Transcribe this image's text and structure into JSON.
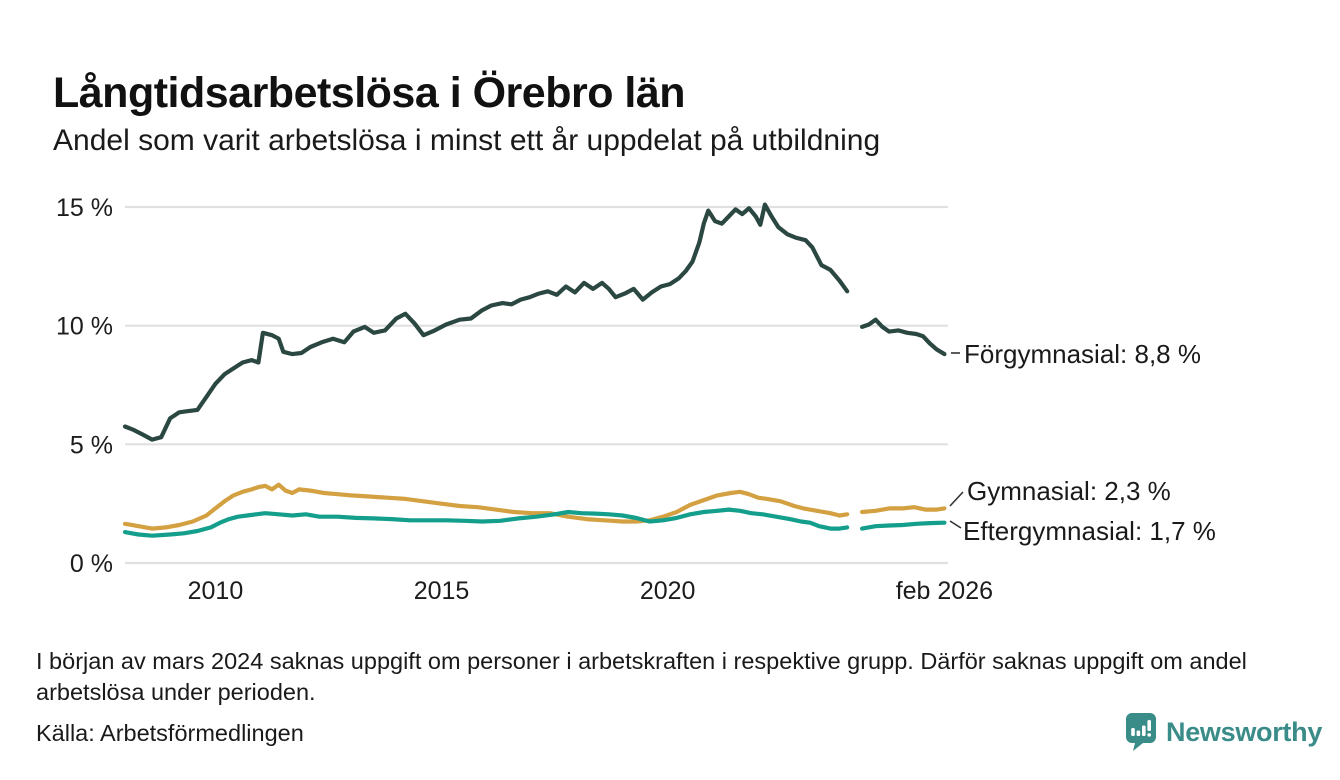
{
  "header": {
    "title": "Långtidsarbetslösa i Örebro län",
    "subtitle": "Andel som varit arbetslösa i minst ett år uppdelat på utbildning"
  },
  "chart_data": {
    "type": "line",
    "title": "Långtidsarbetslösa i Örebro län",
    "subtitle": "Andel som varit arbetslösa i minst ett år uppdelat på utbildning",
    "unit": "%",
    "grid": "horizontal",
    "legend": "direct-labels-right",
    "colors": {
      "forgymnasial": "#2b4742",
      "gymnasial": "#d4a142",
      "eftergymnasial": "#149e8c",
      "gridline": "#e0e0e0",
      "axis_text": "#1c1c1c",
      "connector": "#333333"
    },
    "x_axis": {
      "range": [
        2008.0,
        2026.2
      ],
      "ticks": [
        {
          "label": "2010",
          "t": 2010
        },
        {
          "label": "2015",
          "t": 2015
        },
        {
          "label": "2020",
          "t": 2020
        },
        {
          "label": "feb 2026",
          "t": 2026.12
        }
      ]
    },
    "y_axis": {
      "range": [
        0,
        15
      ],
      "ticks": [
        {
          "label": "0 %",
          "v": 0
        },
        {
          "label": "5 %",
          "v": 5
        },
        {
          "label": "10 %",
          "v": 10
        },
        {
          "label": "15 %",
          "v": 15
        }
      ]
    },
    "series": [
      {
        "name": "Förgymnasial",
        "label": "Förgymnasial: 8,8 %",
        "last_value": 8.8,
        "color": "#2b4742",
        "segments": [
          [
            [
              2008.0,
              5.75
            ],
            [
              2008.2,
              5.6
            ],
            [
              2008.4,
              5.4
            ],
            [
              2008.6,
              5.2
            ],
            [
              2008.8,
              5.3
            ],
            [
              2009.0,
              6.1
            ],
            [
              2009.2,
              6.35
            ],
            [
              2009.4,
              6.4
            ],
            [
              2009.6,
              6.45
            ],
            [
              2009.8,
              7.0
            ],
            [
              2010.0,
              7.55
            ],
            [
              2010.2,
              7.95
            ],
            [
              2010.4,
              8.2
            ],
            [
              2010.6,
              8.45
            ],
            [
              2010.8,
              8.55
            ],
            [
              2010.95,
              8.45
            ],
            [
              2011.05,
              9.7
            ],
            [
              2011.25,
              9.6
            ],
            [
              2011.4,
              9.45
            ],
            [
              2011.5,
              8.9
            ],
            [
              2011.7,
              8.8
            ],
            [
              2011.9,
              8.85
            ],
            [
              2012.1,
              9.1
            ],
            [
              2012.35,
              9.3
            ],
            [
              2012.6,
              9.45
            ],
            [
              2012.85,
              9.3
            ],
            [
              2013.05,
              9.75
            ],
            [
              2013.3,
              9.95
            ],
            [
              2013.5,
              9.7
            ],
            [
              2013.75,
              9.8
            ],
            [
              2014.0,
              10.3
            ],
            [
              2014.2,
              10.5
            ],
            [
              2014.4,
              10.1
            ],
            [
              2014.6,
              9.6
            ],
            [
              2014.85,
              9.8
            ],
            [
              2015.1,
              10.05
            ],
            [
              2015.4,
              10.25
            ],
            [
              2015.65,
              10.3
            ],
            [
              2015.9,
              10.65
            ],
            [
              2016.1,
              10.85
            ],
            [
              2016.35,
              10.95
            ],
            [
              2016.55,
              10.9
            ],
            [
              2016.75,
              11.1
            ],
            [
              2016.95,
              11.2
            ],
            [
              2017.15,
              11.35
            ],
            [
              2017.35,
              11.45
            ],
            [
              2017.55,
              11.3
            ],
            [
              2017.75,
              11.65
            ],
            [
              2017.95,
              11.4
            ],
            [
              2018.15,
              11.8
            ],
            [
              2018.35,
              11.55
            ],
            [
              2018.55,
              11.8
            ],
            [
              2018.7,
              11.55
            ],
            [
              2018.85,
              11.2
            ],
            [
              2019.05,
              11.35
            ],
            [
              2019.25,
              11.55
            ],
            [
              2019.45,
              11.1
            ],
            [
              2019.65,
              11.4
            ],
            [
              2019.85,
              11.65
            ],
            [
              2020.05,
              11.75
            ],
            [
              2020.25,
              12.0
            ],
            [
              2020.4,
              12.3
            ],
            [
              2020.55,
              12.7
            ],
            [
              2020.7,
              13.5
            ],
            [
              2020.8,
              14.3
            ],
            [
              2020.9,
              14.85
            ],
            [
              2021.05,
              14.4
            ],
            [
              2021.2,
              14.3
            ],
            [
              2021.35,
              14.6
            ],
            [
              2021.5,
              14.9
            ],
            [
              2021.65,
              14.7
            ],
            [
              2021.8,
              14.95
            ],
            [
              2021.95,
              14.6
            ],
            [
              2022.05,
              14.25
            ],
            [
              2022.15,
              15.1
            ],
            [
              2022.3,
              14.6
            ],
            [
              2022.45,
              14.15
            ],
            [
              2022.65,
              13.85
            ],
            [
              2022.85,
              13.7
            ],
            [
              2023.05,
              13.6
            ],
            [
              2023.2,
              13.3
            ],
            [
              2023.4,
              12.55
            ],
            [
              2023.6,
              12.35
            ],
            [
              2023.8,
              11.9
            ],
            [
              2023.97,
              11.45
            ]
          ],
          [
            [
              2024.3,
              9.95
            ],
            [
              2024.45,
              10.05
            ],
            [
              2024.6,
              10.25
            ],
            [
              2024.75,
              9.95
            ],
            [
              2024.9,
              9.75
            ],
            [
              2025.1,
              9.8
            ],
            [
              2025.3,
              9.7
            ],
            [
              2025.5,
              9.65
            ],
            [
              2025.65,
              9.55
            ],
            [
              2025.8,
              9.25
            ],
            [
              2025.95,
              9.0
            ],
            [
              2026.12,
              8.8
            ]
          ]
        ]
      },
      {
        "name": "Gymnasial",
        "label": "Gymnasial: 2,3 %",
        "last_value": 2.3,
        "color": "#d4a142",
        "segments": [
          [
            [
              2008.0,
              1.65
            ],
            [
              2008.3,
              1.55
            ],
            [
              2008.6,
              1.45
            ],
            [
              2008.9,
              1.5
            ],
            [
              2009.2,
              1.6
            ],
            [
              2009.5,
              1.75
            ],
            [
              2009.8,
              2.0
            ],
            [
              2010.0,
              2.3
            ],
            [
              2010.2,
              2.6
            ],
            [
              2010.4,
              2.85
            ],
            [
              2010.6,
              3.0
            ],
            [
              2010.8,
              3.1
            ],
            [
              2010.95,
              3.2
            ],
            [
              2011.1,
              3.25
            ],
            [
              2011.25,
              3.1
            ],
            [
              2011.4,
              3.3
            ],
            [
              2011.55,
              3.05
            ],
            [
              2011.7,
              2.95
            ],
            [
              2011.85,
              3.1
            ],
            [
              2012.1,
              3.05
            ],
            [
              2012.4,
              2.95
            ],
            [
              2012.7,
              2.9
            ],
            [
              2013.0,
              2.85
            ],
            [
              2013.4,
              2.8
            ],
            [
              2013.8,
              2.75
            ],
            [
              2014.2,
              2.7
            ],
            [
              2014.6,
              2.6
            ],
            [
              2015.0,
              2.5
            ],
            [
              2015.4,
              2.4
            ],
            [
              2015.8,
              2.35
            ],
            [
              2016.2,
              2.25
            ],
            [
              2016.6,
              2.15
            ],
            [
              2017.0,
              2.1
            ],
            [
              2017.4,
              2.1
            ],
            [
              2017.8,
              1.95
            ],
            [
              2018.2,
              1.85
            ],
            [
              2018.6,
              1.8
            ],
            [
              2019.0,
              1.75
            ],
            [
              2019.3,
              1.75
            ],
            [
              2019.6,
              1.8
            ],
            [
              2019.9,
              1.95
            ],
            [
              2020.2,
              2.15
            ],
            [
              2020.5,
              2.45
            ],
            [
              2020.8,
              2.65
            ],
            [
              2021.1,
              2.85
            ],
            [
              2021.4,
              2.95
            ],
            [
              2021.6,
              3.0
            ],
            [
              2021.8,
              2.9
            ],
            [
              2022.0,
              2.75
            ],
            [
              2022.2,
              2.7
            ],
            [
              2022.5,
              2.6
            ],
            [
              2022.8,
              2.4
            ],
            [
              2023.0,
              2.3
            ],
            [
              2023.3,
              2.2
            ],
            [
              2023.6,
              2.1
            ],
            [
              2023.8,
              2.0
            ],
            [
              2023.97,
              2.05
            ]
          ],
          [
            [
              2024.3,
              2.15
            ],
            [
              2024.6,
              2.2
            ],
            [
              2024.9,
              2.3
            ],
            [
              2025.2,
              2.3
            ],
            [
              2025.45,
              2.35
            ],
            [
              2025.7,
              2.25
            ],
            [
              2025.95,
              2.25
            ],
            [
              2026.12,
              2.3
            ]
          ]
        ]
      },
      {
        "name": "Eftergymnasial",
        "label": "Eftergymnasial: 1,7 %",
        "last_value": 1.7,
        "color": "#149e8c",
        "segments": [
          [
            [
              2008.0,
              1.3
            ],
            [
              2008.3,
              1.2
            ],
            [
              2008.6,
              1.15
            ],
            [
              2009.0,
              1.2
            ],
            [
              2009.3,
              1.25
            ],
            [
              2009.6,
              1.35
            ],
            [
              2009.9,
              1.5
            ],
            [
              2010.1,
              1.7
            ],
            [
              2010.3,
              1.85
            ],
            [
              2010.5,
              1.95
            ],
            [
              2010.7,
              2.0
            ],
            [
              2010.9,
              2.05
            ],
            [
              2011.1,
              2.1
            ],
            [
              2011.4,
              2.05
            ],
            [
              2011.7,
              2.0
            ],
            [
              2012.0,
              2.05
            ],
            [
              2012.3,
              1.95
            ],
            [
              2012.7,
              1.95
            ],
            [
              2013.1,
              1.9
            ],
            [
              2013.5,
              1.88
            ],
            [
              2013.9,
              1.85
            ],
            [
              2014.3,
              1.8
            ],
            [
              2014.7,
              1.8
            ],
            [
              2015.1,
              1.8
            ],
            [
              2015.5,
              1.78
            ],
            [
              2015.9,
              1.75
            ],
            [
              2016.3,
              1.78
            ],
            [
              2016.7,
              1.88
            ],
            [
              2017.1,
              1.95
            ],
            [
              2017.5,
              2.05
            ],
            [
              2017.8,
              2.15
            ],
            [
              2018.1,
              2.1
            ],
            [
              2018.4,
              2.08
            ],
            [
              2018.7,
              2.05
            ],
            [
              2019.0,
              2.0
            ],
            [
              2019.3,
              1.9
            ],
            [
              2019.6,
              1.75
            ],
            [
              2019.9,
              1.8
            ],
            [
              2020.2,
              1.9
            ],
            [
              2020.5,
              2.05
            ],
            [
              2020.8,
              2.15
            ],
            [
              2021.1,
              2.2
            ],
            [
              2021.35,
              2.25
            ],
            [
              2021.6,
              2.2
            ],
            [
              2021.85,
              2.1
            ],
            [
              2022.1,
              2.05
            ],
            [
              2022.4,
              1.95
            ],
            [
              2022.7,
              1.85
            ],
            [
              2022.95,
              1.75
            ],
            [
              2023.15,
              1.7
            ],
            [
              2023.35,
              1.55
            ],
            [
              2023.6,
              1.45
            ],
            [
              2023.8,
              1.45
            ],
            [
              2023.97,
              1.5
            ]
          ],
          [
            [
              2024.3,
              1.45
            ],
            [
              2024.6,
              1.55
            ],
            [
              2024.9,
              1.58
            ],
            [
              2025.2,
              1.6
            ],
            [
              2025.5,
              1.65
            ],
            [
              2025.8,
              1.68
            ],
            [
              2026.12,
              1.7
            ]
          ]
        ]
      }
    ]
  },
  "footer": {
    "note": "I början av mars 2024 saknas uppgift om personer i arbetskraften i respektive grupp. Därför saknas uppgift om andel arbetslösa under perioden.",
    "source": "Källa: Arbetsförmedlingen",
    "brand": "Newsworthy"
  }
}
